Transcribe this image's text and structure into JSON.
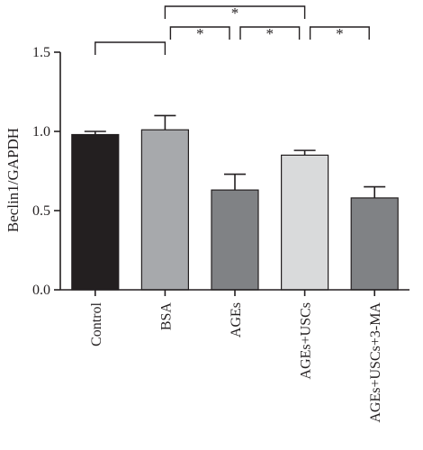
{
  "chart_data": {
    "type": "bar",
    "title": "",
    "xlabel": "",
    "ylabel": "Beclin1/GAPDH",
    "ylim": [
      0,
      1.5
    ],
    "yticks": [
      "0.0",
      "0.5",
      "1.0",
      "1.5"
    ],
    "categories": [
      "Control",
      "BSA",
      "AGEs",
      "AGEs+USCs",
      "AGEs+USCs+3-MA"
    ],
    "values": [
      0.98,
      1.01,
      0.63,
      0.85,
      0.58
    ],
    "errors": [
      0.02,
      0.09,
      0.1,
      0.03,
      0.07
    ],
    "colors": [
      "#231f20",
      "#a7a9ac",
      "#808285",
      "#d9dadb",
      "#808285"
    ],
    "grid": false,
    "significance": [
      {
        "from": 1,
        "to": 3,
        "label": "*"
      },
      {
        "from": 0,
        "to": 1,
        "label": ""
      },
      {
        "from": 1,
        "to": 2,
        "label": "*"
      },
      {
        "from": 2,
        "to": 3,
        "label": "*"
      },
      {
        "from": 3,
        "to": 4,
        "label": "*"
      }
    ]
  }
}
